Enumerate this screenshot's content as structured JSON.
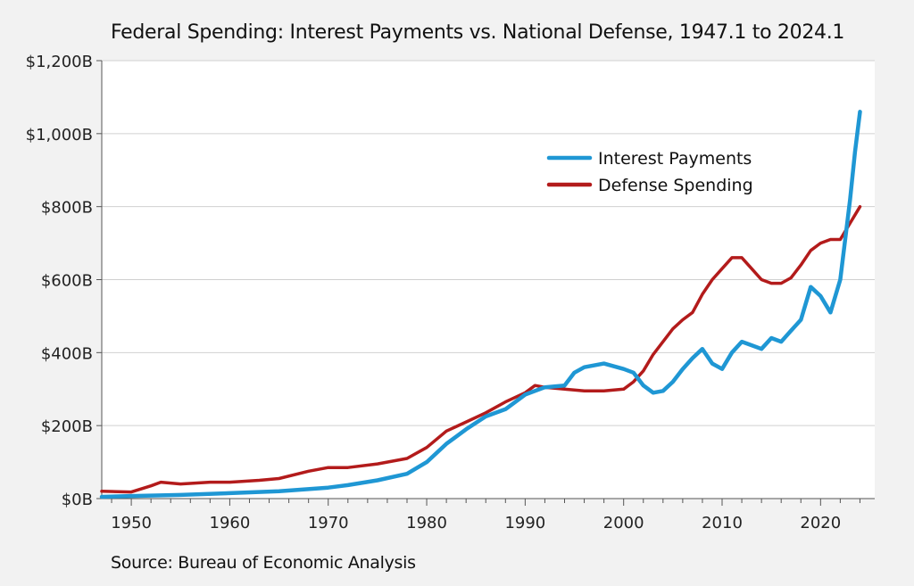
{
  "chart_data": {
    "type": "line",
    "title": "Federal Spending: Interest Payments vs. National Defense, 1947.1 to 2024.1",
    "source": "Source: Bureau of Economic Analysis",
    "xlabel": "",
    "ylabel": "",
    "xlim": [
      1947,
      2025.5
    ],
    "ylim": [
      0,
      1200
    ],
    "x_ticks": [
      1950,
      1960,
      1970,
      1980,
      1990,
      2000,
      2010,
      2020
    ],
    "x_tick_labels": [
      "1950",
      "1960",
      "1970",
      "1980",
      "1990",
      "2000",
      "2010",
      "2020"
    ],
    "y_ticks": [
      0,
      200,
      400,
      600,
      800,
      1000,
      1200
    ],
    "y_tick_labels": [
      "$0B",
      "$200B",
      "$400B",
      "$600B",
      "$800B",
      "$1,000B",
      "$1,200B"
    ],
    "grid": "horizontal",
    "legend_position": "top-right",
    "series": [
      {
        "name": "Interest Payments",
        "color": "#1f97d4",
        "x": [
          1947,
          1950,
          1955,
          1960,
          1965,
          1970,
          1972,
          1975,
          1978,
          1980,
          1982,
          1984,
          1986,
          1988,
          1990,
          1992,
          1994,
          1995,
          1996,
          1998,
          2000,
          2001,
          2002,
          2003,
          2004,
          2005,
          2006,
          2007,
          2008,
          2009,
          2010,
          2011,
          2012,
          2013,
          2014,
          2015,
          2016,
          2017,
          2018,
          2019,
          2020,
          2021,
          2022,
          2023,
          2023.5,
          2024
        ],
        "values": [
          5,
          7,
          10,
          15,
          20,
          30,
          37,
          50,
          68,
          100,
          150,
          190,
          225,
          245,
          285,
          305,
          310,
          345,
          360,
          370,
          355,
          345,
          310,
          290,
          295,
          320,
          355,
          385,
          410,
          370,
          355,
          400,
          430,
          420,
          410,
          440,
          430,
          460,
          490,
          580,
          555,
          510,
          600,
          820,
          950,
          1060
        ]
      },
      {
        "name": "Defense Spending",
        "color": "#b31b1b",
        "x": [
          1947,
          1950,
          1952,
          1953,
          1955,
          1958,
          1960,
          1963,
          1965,
          1968,
          1970,
          1972,
          1975,
          1978,
          1980,
          1982,
          1984,
          1986,
          1988,
          1990,
          1991,
          1992,
          1994,
          1996,
          1998,
          2000,
          2001,
          2002,
          2003,
          2004,
          2005,
          2006,
          2007,
          2008,
          2009,
          2010,
          2011,
          2012,
          2013,
          2014,
          2015,
          2016,
          2017,
          2018,
          2019,
          2020,
          2021,
          2022,
          2023,
          2024
        ],
        "values": [
          20,
          18,
          35,
          45,
          40,
          45,
          45,
          50,
          55,
          75,
          85,
          85,
          95,
          110,
          140,
          185,
          210,
          235,
          265,
          290,
          310,
          305,
          300,
          295,
          295,
          300,
          320,
          350,
          395,
          430,
          465,
          490,
          510,
          560,
          600,
          630,
          660,
          660,
          630,
          600,
          590,
          590,
          605,
          640,
          680,
          700,
          710,
          710,
          755,
          800
        ]
      }
    ]
  }
}
